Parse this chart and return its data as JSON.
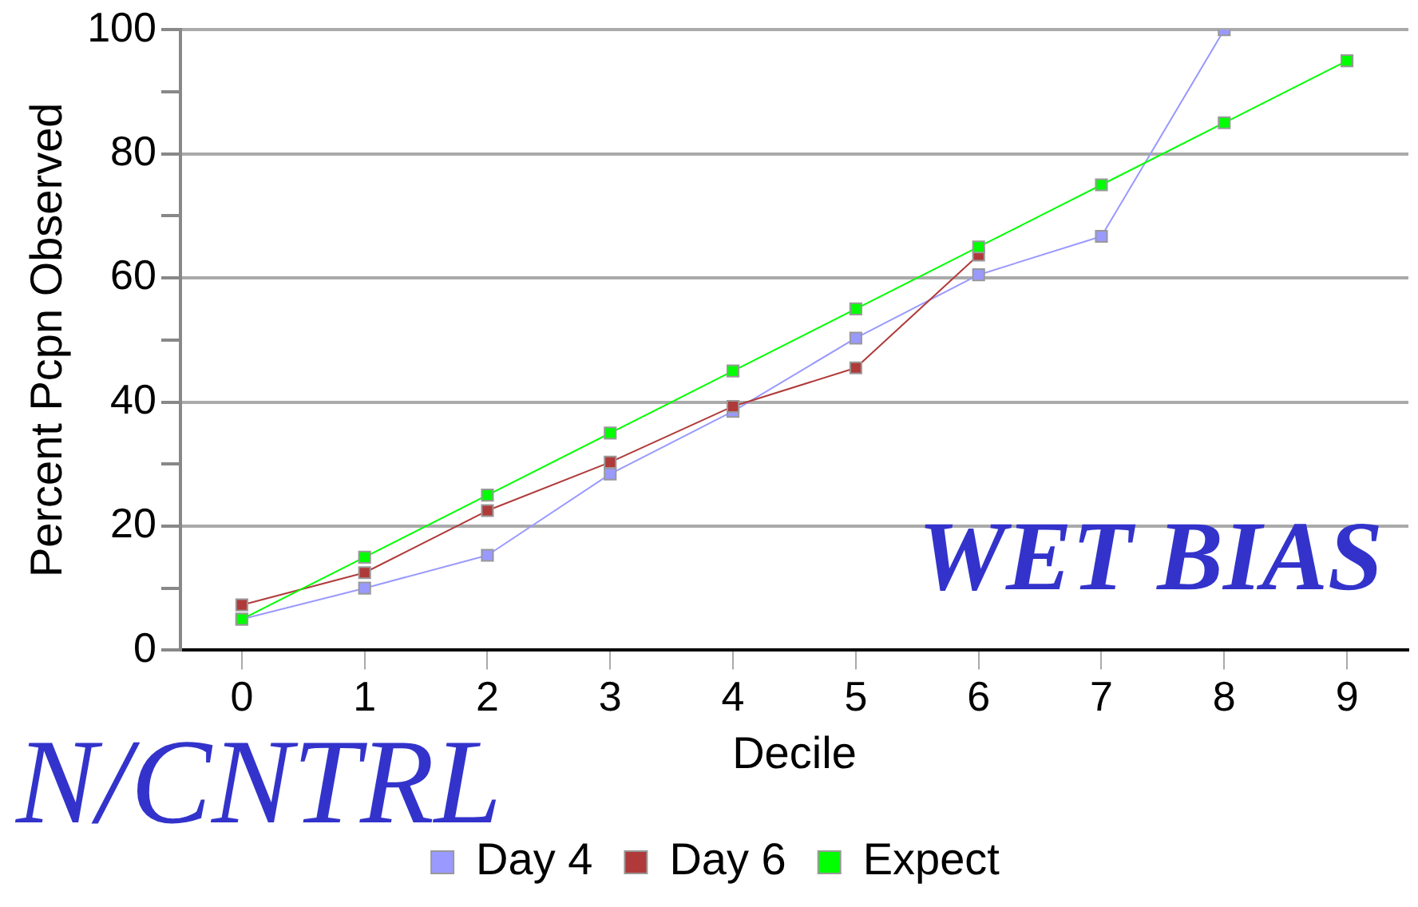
{
  "chart_data": {
    "type": "line",
    "xlabel": "Decile",
    "ylabel": "Percent Pcpn Observed",
    "categories": [
      "0",
      "1",
      "2",
      "3",
      "4",
      "5",
      "6",
      "7",
      "8",
      "9"
    ],
    "series": [
      {
        "name": "Day 4",
        "color": "#9999ff",
        "values": [
          5,
          10,
          15.3,
          28.4,
          38.5,
          50.3,
          60.5,
          66.7,
          100,
          null
        ]
      },
      {
        "name": "Day 6",
        "color": "#b03a3a",
        "values": [
          7.3,
          12.5,
          22.5,
          30.3,
          39.3,
          45.5,
          63.7,
          null,
          null,
          null
        ]
      },
      {
        "name": "Expect",
        "color": "#00ff00",
        "values": [
          5,
          15,
          25,
          35,
          45,
          55,
          65,
          75,
          85,
          95
        ]
      }
    ],
    "ylim": [
      0,
      100
    ],
    "yticks": [
      0,
      {
        "value": 10,
        "label": null
      },
      20,
      {
        "value": 30,
        "label": null
      },
      40,
      {
        "value": 50,
        "label": null
      },
      60,
      {
        "value": 70,
        "label": null
      },
      80,
      {
        "value": 90,
        "label": null
      },
      100
    ],
    "grid": "y",
    "legend": "bottom",
    "marker": "square",
    "line_style": "solid",
    "annotations": [
      "WET BIAS",
      "N/CNTRL"
    ]
  }
}
